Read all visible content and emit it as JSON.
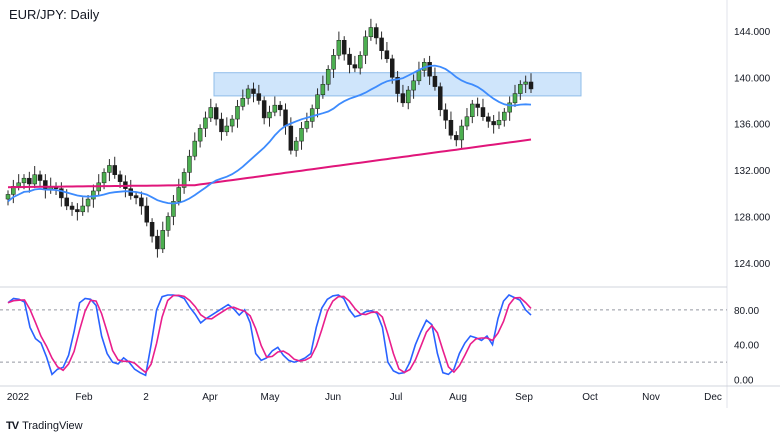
{
  "title": "EUR/JPY: Daily",
  "brand": {
    "logo_text": "TV",
    "name": "TradingView"
  },
  "colors": {
    "up": "#26a69a",
    "down": "#26a69a",
    "bull_body": "#4caf50",
    "bear_body": "#1b1b1b",
    "ma100": "#3d8bfd",
    "ma200": "#e0157a",
    "stoch_k": "#2962ff",
    "stoch_d": "#e91e8c",
    "zone_fill": "#cfe5fb",
    "zone_stroke": "#8fbde9"
  },
  "chart_data": {
    "type": "candlestick",
    "title": "EUR/JPY: Daily",
    "x_ticks": [
      "2022",
      "Feb",
      "2",
      "Apr",
      "May",
      "Jun",
      "Jul",
      "Aug",
      "Sep",
      "Oct",
      "Nov",
      "Dec"
    ],
    "price_axis": {
      "ticks": [
        "144.000",
        "140.000",
        "136.000",
        "132.000",
        "128.000",
        "124.000"
      ],
      "ylim": [
        122.0,
        146.5
      ]
    },
    "stoch_axis": {
      "ticks": [
        "80.00",
        "40.00",
        "0.00"
      ],
      "levels": [
        80,
        20
      ],
      "ylim": [
        -5,
        105
      ]
    },
    "resistance_zone": {
      "low": 138.4,
      "high": 140.4
    },
    "closes": [
      129.9,
      130.6,
      130.9,
      131.3,
      130.8,
      131.6,
      131.1,
      130.3,
      130.6,
      130.4,
      129.6,
      128.9,
      128.6,
      128.4,
      128.9,
      129.5,
      130.2,
      130.9,
      131.8,
      132.4,
      131.6,
      131.0,
      130.4,
      129.8,
      129.6,
      128.9,
      127.5,
      126.3,
      125.2,
      126.8,
      128.0,
      129.3,
      130.5,
      131.8,
      133.2,
      134.5,
      135.6,
      136.5,
      137.4,
      136.4,
      135.3,
      135.8,
      136.4,
      137.5,
      138.2,
      139.0,
      138.6,
      138.0,
      136.5,
      137.0,
      137.6,
      137.2,
      135.8,
      133.7,
      134.5,
      135.6,
      136.2,
      137.3,
      138.5,
      139.4,
      140.7,
      141.9,
      143.2,
      142.0,
      141.1,
      140.8,
      141.9,
      143.5,
      144.3,
      143.4,
      142.3,
      141.6,
      140.0,
      138.6,
      137.8,
      138.9,
      139.7,
      140.6,
      141.3,
      140.1,
      139.2,
      137.2,
      136.3,
      135.0,
      134.6,
      135.8,
      136.6,
      137.7,
      137.4,
      136.6,
      136.2,
      135.9,
      136.3,
      137.0,
      137.8,
      138.6,
      139.4,
      139.6,
      139.0
    ],
    "stoch_k": [
      88,
      93,
      92,
      89,
      60,
      47,
      42,
      26,
      6,
      12,
      14,
      28,
      55,
      88,
      93,
      92,
      85,
      50,
      30,
      20,
      18,
      25,
      20,
      12,
      8,
      5,
      40,
      80,
      95,
      97,
      97,
      96,
      93,
      83,
      75,
      65,
      70,
      74,
      78,
      82,
      86,
      81,
      74,
      80,
      65,
      30,
      22,
      25,
      33,
      37,
      28,
      22,
      20,
      22,
      25,
      30,
      60,
      82,
      92,
      96,
      97,
      93,
      80,
      72,
      74,
      78,
      79,
      76,
      60,
      20,
      10,
      7,
      8,
      20,
      40,
      55,
      68,
      63,
      30,
      8,
      6,
      12,
      30,
      42,
      50,
      48,
      45,
      50,
      40,
      70,
      90,
      97,
      94,
      91,
      80,
      74
    ]
  }
}
